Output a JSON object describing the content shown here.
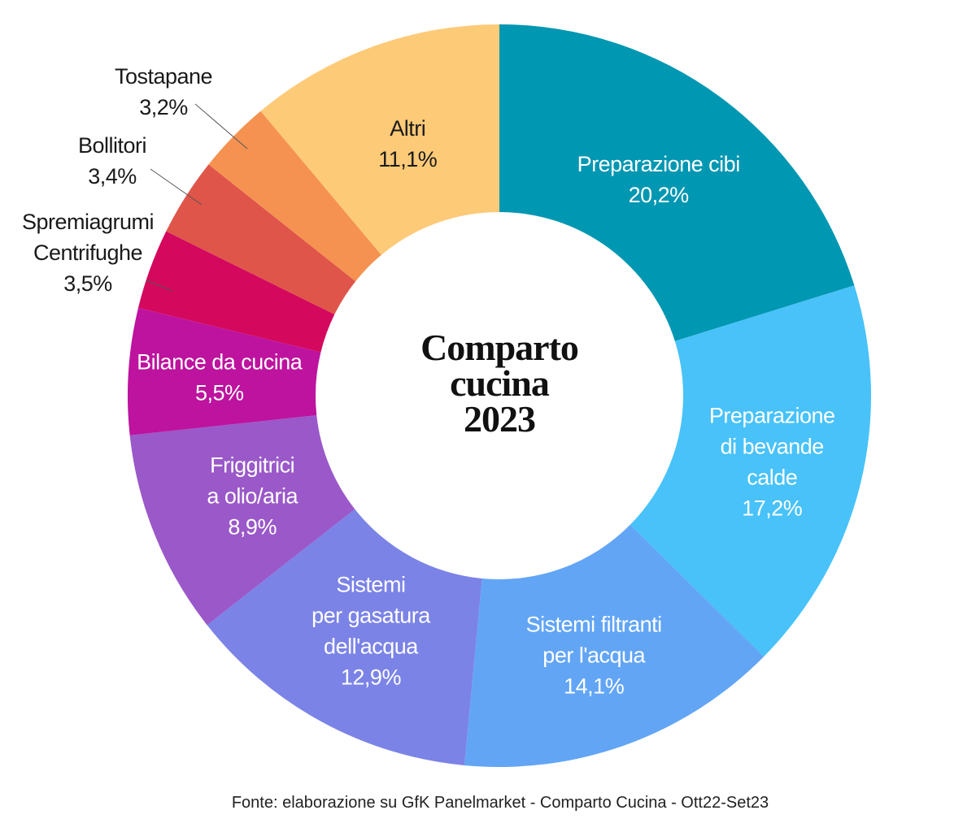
{
  "chart_data": {
    "type": "pie",
    "title": "Comparto cucina 2023",
    "title_lines": [
      "Comparto",
      "cucina",
      "2023"
    ],
    "source": "Fonte: elaborazione su GfK Panelmarket - Comparto Cucina - Ott22-Set23",
    "slices": [
      {
        "label": "Preparazione cibi",
        "label_lines": [
          "Preparazione cibi"
        ],
        "value": 20.2,
        "display": "20,2%",
        "color": "#0097b2",
        "text_color": "#ffffff"
      },
      {
        "label": "Preparazione di bevande calde",
        "label_lines": [
          "Preparazione",
          "di bevande",
          "calde"
        ],
        "value": 17.2,
        "display": "17,2%",
        "color": "#48c2f9",
        "text_color": "#ffffff"
      },
      {
        "label": "Sistemi filtranti per l'acqua",
        "label_lines": [
          "Sistemi filtranti",
          "per l'acqua"
        ],
        "value": 14.1,
        "display": "14,1%",
        "color": "#62a5f5",
        "text_color": "#ffffff"
      },
      {
        "label": "Sistemi per gasatura dell'acqua",
        "label_lines": [
          "Sistemi",
          "per gasatura",
          "dell'acqua"
        ],
        "value": 12.9,
        "display": "12,9%",
        "color": "#7b83e6",
        "text_color": "#ffffff"
      },
      {
        "label": "Friggitrici a olio/aria",
        "label_lines": [
          "Friggitrici",
          "a olio/aria"
        ],
        "value": 8.9,
        "display": "8,9%",
        "color": "#9a58c9",
        "text_color": "#ffffff"
      },
      {
        "label": "Bilance da cucina",
        "label_lines": [
          "Bilance da cucina"
        ],
        "value": 5.5,
        "display": "5,5%",
        "color": "#bd139f",
        "text_color": "#ffffff"
      },
      {
        "label": "Spremiagrumi Centrifughe",
        "label_lines": [
          "Spremiagrumi",
          "Centrifughe"
        ],
        "value": 3.5,
        "display": "3,5%",
        "color": "#d4085d",
        "text_color": "#1a1a1a",
        "outside": true
      },
      {
        "label": "Bollitori",
        "label_lines": [
          "Bollitori"
        ],
        "value": 3.4,
        "display": "3,4%",
        "color": "#e0554a",
        "text_color": "#1a1a1a",
        "outside": true
      },
      {
        "label": "Tostapane",
        "label_lines": [
          "Tostapane"
        ],
        "value": 3.2,
        "display": "3,2%",
        "color": "#f59251",
        "text_color": "#1a1a1a",
        "outside": true
      },
      {
        "label": "Altri",
        "label_lines": [
          "Altri"
        ],
        "value": 11.1,
        "display": "11,1%",
        "color": "#fdca78",
        "text_color": "#1a1a1a"
      }
    ]
  }
}
